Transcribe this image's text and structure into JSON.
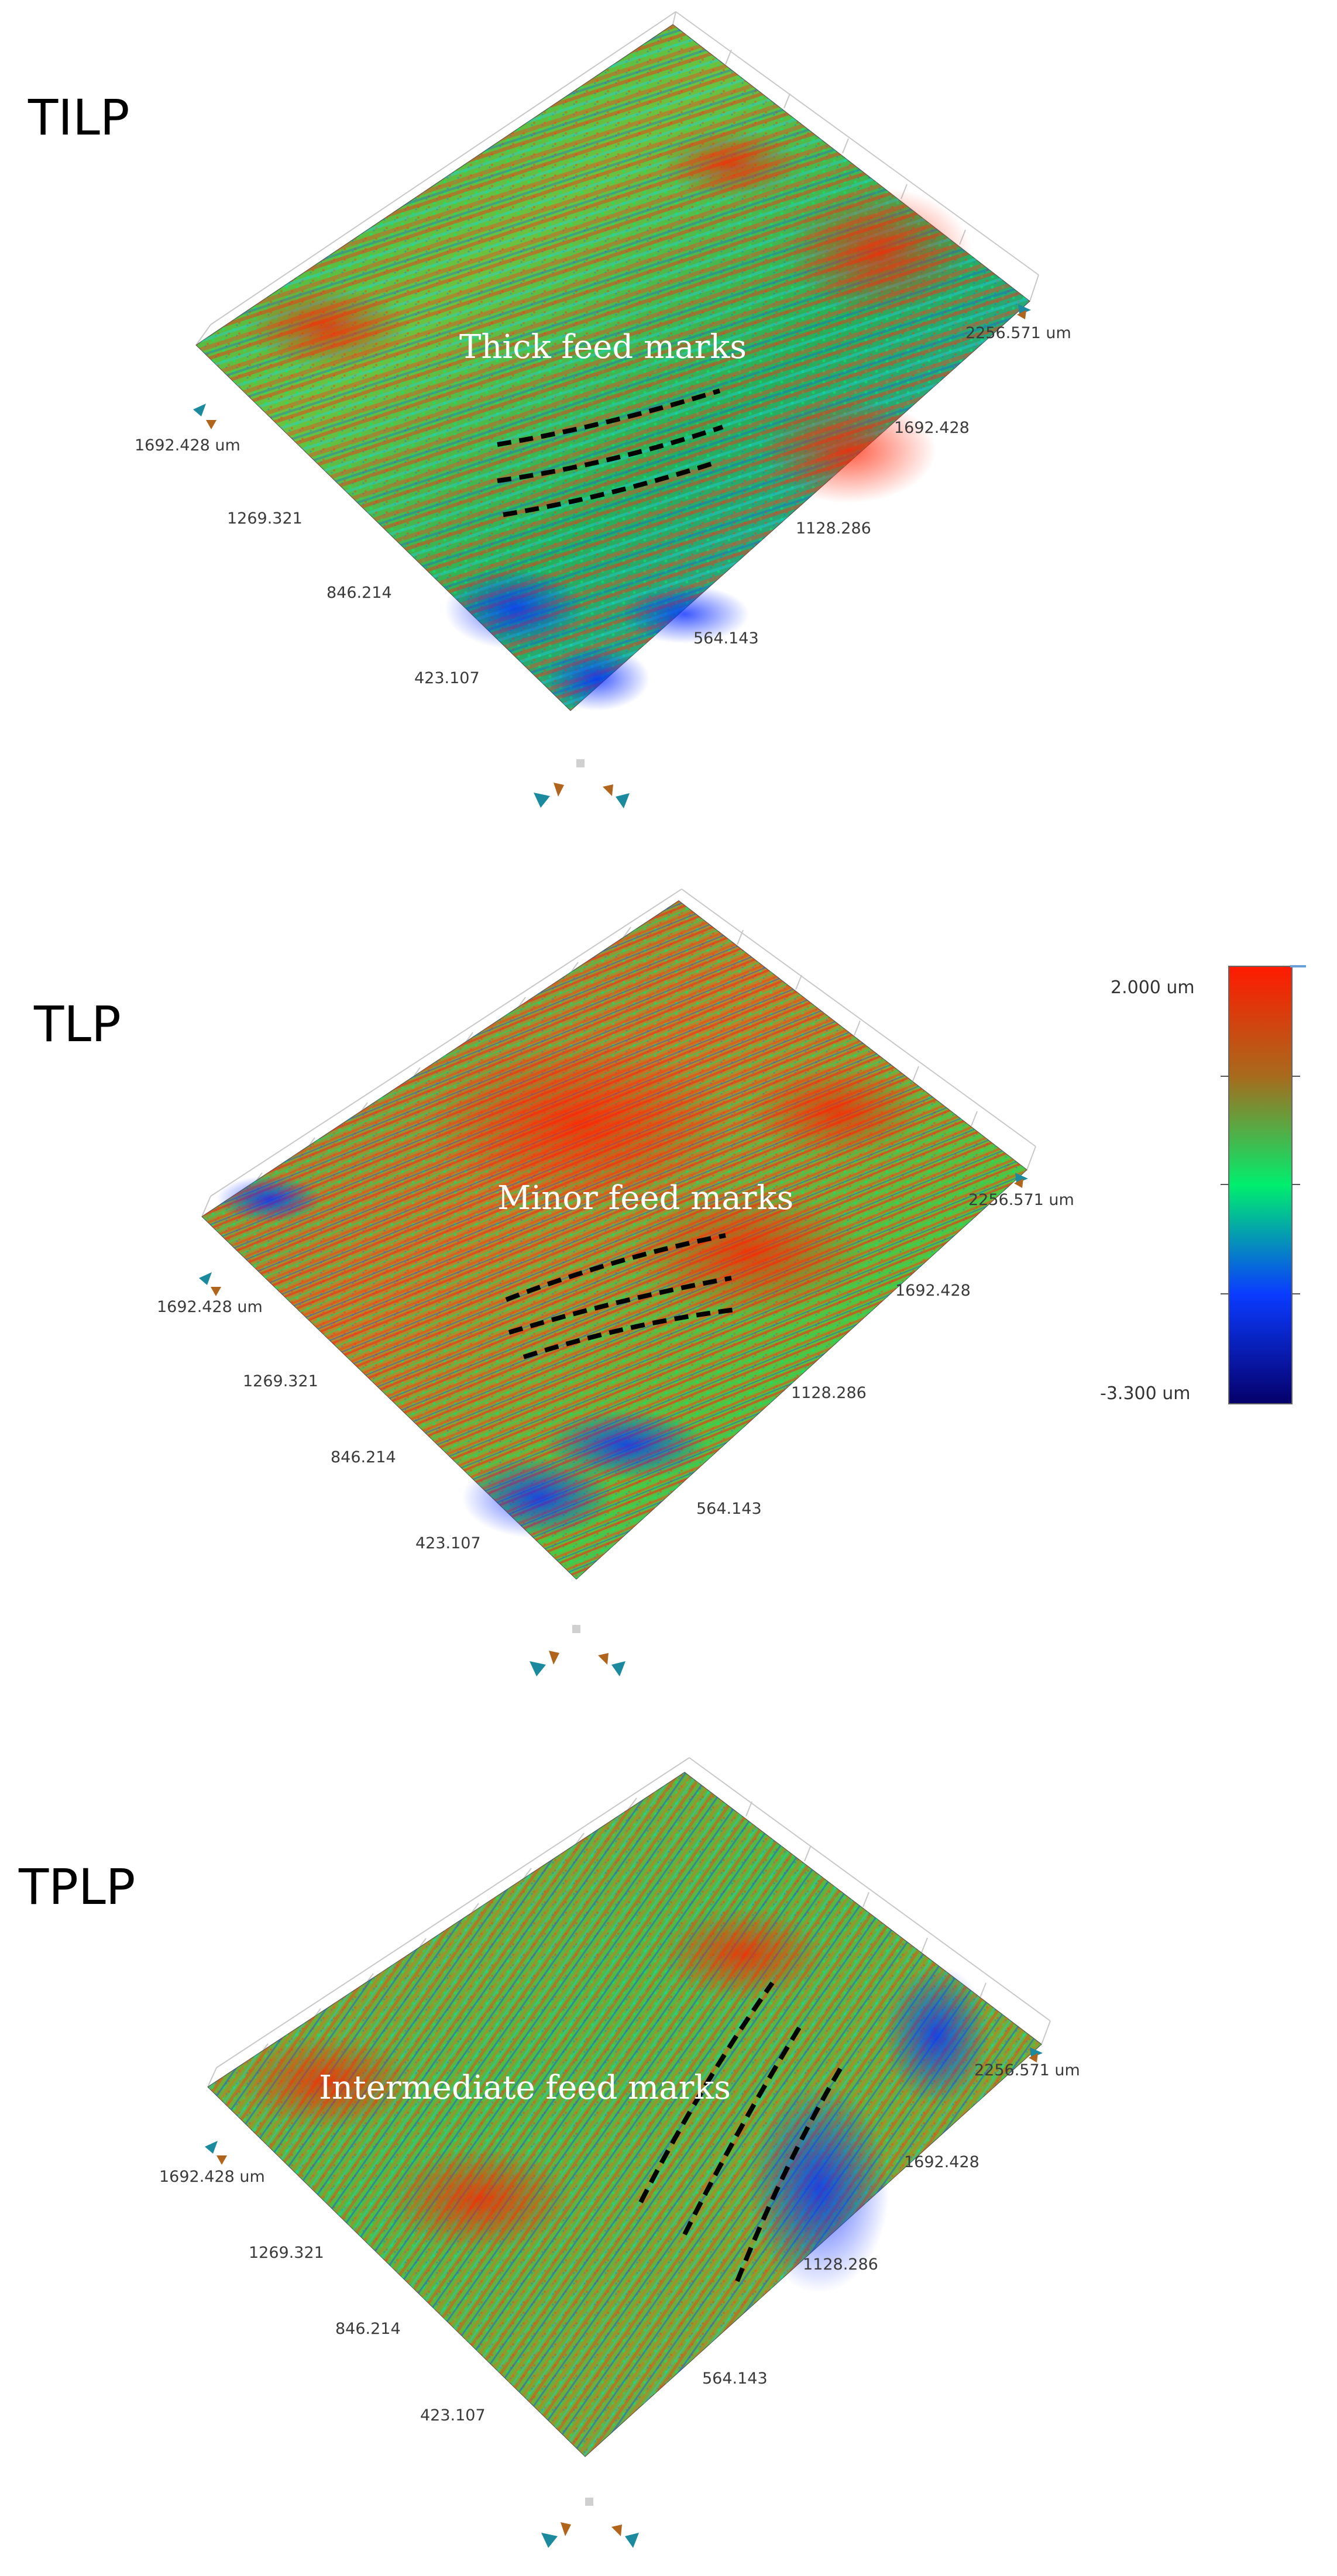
{
  "panels": [
    {
      "label": "TILP",
      "annotation": "Thick feed marks",
      "scale": "coarse",
      "left_axis_ticks": [
        "1692.428 um",
        "1269.321",
        "846.214",
        "423.107"
      ],
      "right_axis_ticks": [
        "2256.571 um",
        "1692.428",
        "1128.286",
        "564.143"
      ]
    },
    {
      "label": "TLP",
      "annotation": "Minor feed marks",
      "scale": "fine",
      "left_axis_ticks": [
        "1692.428 um",
        "1269.321",
        "846.214",
        "423.107"
      ],
      "right_axis_ticks": [
        "2256.571 um",
        "1692.428",
        "1128.286",
        "564.143"
      ]
    },
    {
      "label": "TPLP",
      "annotation": "Intermediate feed marks",
      "scale": "medium",
      "left_axis_ticks": [
        "1692.428 um",
        "1269.321",
        "846.214",
        "423.107"
      ],
      "right_axis_ticks": [
        "2256.571 um",
        "1692.428",
        "1128.286",
        "564.143"
      ]
    }
  ],
  "colorbar": {
    "max_label": "2.000 um",
    "min_label": "-3.300 um",
    "colors": [
      "#ff0000",
      "#9a6a1e",
      "#00e070",
      "#0040ff",
      "#000070"
    ]
  },
  "colors": {
    "marker_dash": "#000000",
    "triad_teal": "#1b8a9e",
    "triad_brown": "#b0641c",
    "grid": "#c8c8c8"
  }
}
